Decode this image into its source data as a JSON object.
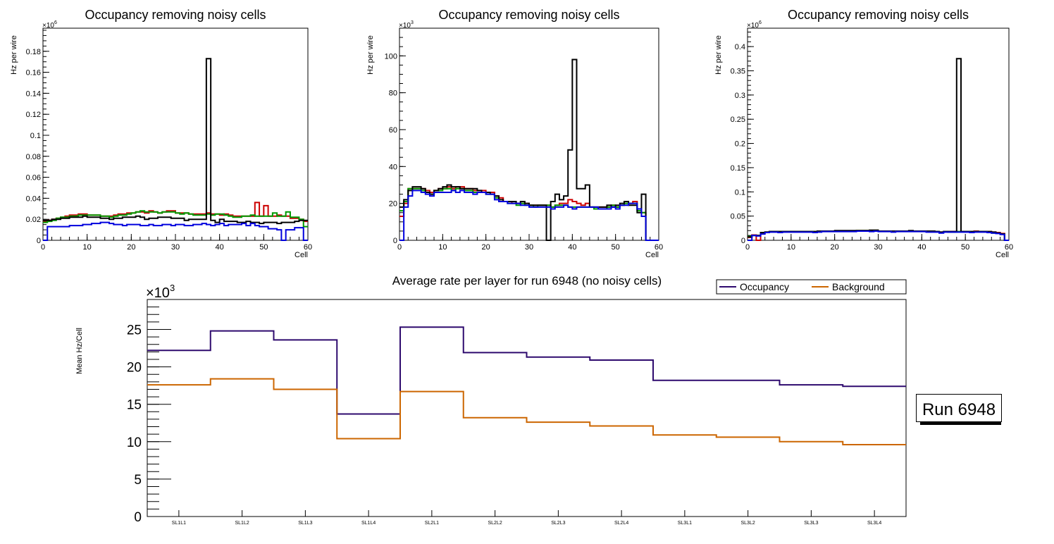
{
  "chart_data": [
    {
      "type": "line",
      "style": "step-histogram",
      "title": "Occupancy removing noisy cells",
      "xlabel": "Cell",
      "ylabel": "Hz per wire",
      "y_multiplier": "×10",
      "y_multiplier_exp": "6",
      "xlim": [
        0,
        60
      ],
      "ylim": [
        0,
        0.202
      ],
      "xticks": [
        0,
        10,
        20,
        30,
        40,
        50,
        60
      ],
      "yticks": [
        0,
        0.02,
        0.04,
        0.06,
        0.08,
        0.1,
        0.12,
        0.14,
        0.16,
        0.18
      ],
      "ytick_labels": [
        "0",
        "0.02",
        "0.04",
        "0.06",
        "0.08",
        "0.1",
        "0.12",
        "0.14",
        "0.16",
        "0.18"
      ],
      "y_minor": 0.005,
      "x_minor": 2,
      "series": [
        {
          "name": "red",
          "color": "#cc0000",
          "values": [
            0.018,
            0.019,
            0.02,
            0.021,
            0.022,
            0.023,
            0.024,
            0.024,
            0.025,
            0.025,
            0.024,
            0.024,
            0.024,
            0.023,
            0.023,
            0.023,
            0.024,
            0.025,
            0.025,
            0.026,
            0.026,
            0.027,
            0.027,
            0.026,
            0.028,
            0.027,
            0.026,
            0.027,
            0.028,
            0.028,
            0.026,
            0.026,
            0.026,
            0.025,
            0.025,
            0.025,
            0.025,
            0.026,
            0.025,
            0.025,
            0.024,
            0.025,
            0.024,
            0.023,
            0.023,
            0.023,
            0.023,
            0.023,
            0.036,
            0.023,
            0.033,
            0.023,
            0.023,
            0.024,
            0.023,
            0.023,
            0.021,
            0.021,
            0.02,
            0.018
          ]
        },
        {
          "name": "green",
          "color": "#009900",
          "values": [
            0.017,
            0.018,
            0.019,
            0.021,
            0.022,
            0.022,
            0.023,
            0.023,
            0.024,
            0.024,
            0.024,
            0.024,
            0.024,
            0.023,
            0.023,
            0.022,
            0.023,
            0.024,
            0.024,
            0.025,
            0.026,
            0.027,
            0.028,
            0.027,
            0.027,
            0.027,
            0.026,
            0.027,
            0.027,
            0.027,
            0.026,
            0.025,
            0.026,
            0.025,
            0.024,
            0.024,
            0.024,
            0.025,
            0.024,
            0.025,
            0.025,
            0.024,
            0.023,
            0.022,
            0.022,
            0.023,
            0.023,
            0.024,
            0.023,
            0.023,
            0.023,
            0.023,
            0.026,
            0.023,
            0.023,
            0.027,
            0.022,
            0.022,
            0.02,
            0.013
          ]
        },
        {
          "name": "black",
          "color": "#000000",
          "values": [
            0.019,
            0.019,
            0.02,
            0.02,
            0.021,
            0.021,
            0.022,
            0.022,
            0.022,
            0.023,
            0.022,
            0.022,
            0.022,
            0.021,
            0.021,
            0.02,
            0.021,
            0.021,
            0.022,
            0.022,
            0.022,
            0.023,
            0.022,
            0.02,
            0.021,
            0.021,
            0.022,
            0.022,
            0.022,
            0.021,
            0.021,
            0.021,
            0.019,
            0.02,
            0.02,
            0.02,
            0.02,
            0.173,
            0.019,
            0.017,
            0.02,
            0.018,
            0.018,
            0.018,
            0.017,
            0.017,
            0.018,
            0.017,
            0.017,
            0.016,
            0.017,
            0.017,
            0.017,
            0.016,
            0.017,
            0.017,
            0.017,
            0.018,
            0.019,
            0.019
          ]
        },
        {
          "name": "blue",
          "color": "#0000dd",
          "values": [
            0,
            0.013,
            0.013,
            0.013,
            0.013,
            0.013,
            0.014,
            0.014,
            0.014,
            0.015,
            0.015,
            0.016,
            0.016,
            0.017,
            0.017,
            0.016,
            0.015,
            0.015,
            0.014,
            0.015,
            0.015,
            0.015,
            0.014,
            0.014,
            0.015,
            0.014,
            0.014,
            0.015,
            0.015,
            0.014,
            0.015,
            0.015,
            0.014,
            0.014,
            0.015,
            0.015,
            0.016,
            0.015,
            0.014,
            0.015,
            0.016,
            0.014,
            0.015,
            0.015,
            0.015,
            0.016,
            0.014,
            0.016,
            0.014,
            0.013,
            0.013,
            0.011,
            0.011,
            0.01,
            0,
            0.01,
            0.01,
            0.012,
            0.012,
            0
          ]
        }
      ]
    },
    {
      "type": "line",
      "style": "step-histogram",
      "title": "Occupancy removing noisy cells",
      "xlabel": "Cell",
      "ylabel": "Hz per wire",
      "y_multiplier": "×10",
      "y_multiplier_exp": "3",
      "xlim": [
        0,
        60
      ],
      "ylim": [
        0,
        115
      ],
      "xticks": [
        0,
        10,
        20,
        30,
        40,
        50,
        60
      ],
      "yticks": [
        0,
        20,
        40,
        60,
        80,
        100
      ],
      "ytick_labels": [
        "0",
        "20",
        "40",
        "60",
        "80",
        "100"
      ],
      "y_minor": 5,
      "x_minor": 2,
      "series": [
        {
          "name": "red",
          "color": "#cc0000",
          "values": [
            13,
            20,
            28,
            28,
            28,
            28,
            27,
            26,
            27,
            28,
            28,
            29,
            28,
            29,
            29,
            28,
            28,
            27,
            27,
            27,
            26,
            26,
            24,
            23,
            21,
            21,
            20,
            20,
            20,
            20,
            19,
            19,
            19,
            19,
            19,
            18,
            19,
            20,
            20,
            22,
            21,
            20,
            19,
            20,
            18,
            18,
            18,
            18,
            18,
            19,
            18,
            19,
            20,
            20,
            21,
            17,
            15,
            0,
            0,
            0
          ]
        },
        {
          "name": "green",
          "color": "#009900",
          "values": [
            16,
            21,
            28,
            28,
            28,
            27,
            26,
            25,
            27,
            27,
            28,
            28,
            27,
            28,
            28,
            27,
            27,
            26,
            26,
            26,
            25,
            25,
            23,
            21,
            21,
            20,
            20,
            19,
            20,
            19,
            19,
            18,
            19,
            19,
            19,
            18,
            19,
            19,
            19,
            18,
            18,
            18,
            18,
            18,
            18,
            17,
            17,
            17,
            18,
            19,
            18,
            19,
            20,
            20,
            20,
            16,
            15,
            0,
            0,
            0
          ]
        },
        {
          "name": "black",
          "color": "#000000",
          "values": [
            18,
            22,
            27,
            29,
            29,
            28,
            26,
            25,
            27,
            28,
            29,
            30,
            29,
            29,
            28,
            28,
            28,
            28,
            27,
            26,
            26,
            25,
            24,
            22,
            21,
            21,
            21,
            20,
            21,
            20,
            19,
            19,
            19,
            19,
            0,
            21,
            25,
            22,
            24,
            49,
            98,
            28,
            28,
            30,
            18,
            18,
            18,
            18,
            19,
            18,
            19,
            20,
            21,
            19,
            19,
            15,
            25,
            0,
            0,
            0
          ]
        },
        {
          "name": "blue",
          "color": "#0000dd",
          "values": [
            0,
            18,
            24,
            27,
            27,
            26,
            25,
            24,
            26,
            26,
            26,
            26,
            27,
            26,
            27,
            26,
            26,
            25,
            26,
            26,
            25,
            25,
            22,
            21,
            21,
            20,
            20,
            20,
            19,
            19,
            18,
            18,
            18,
            18,
            18,
            17,
            18,
            18,
            19,
            18,
            17,
            18,
            18,
            18,
            18,
            18,
            17,
            17,
            17,
            18,
            17,
            19,
            19,
            20,
            20,
            17,
            13,
            0,
            0,
            0
          ]
        }
      ]
    },
    {
      "type": "line",
      "style": "step-histogram",
      "title": "Occupancy removing noisy cells",
      "xlabel": "Cell",
      "ylabel": "Hz per wire",
      "y_multiplier": "×10",
      "y_multiplier_exp": "6",
      "xlim": [
        0,
        60
      ],
      "ylim": [
        0,
        0.438
      ],
      "xticks": [
        0,
        10,
        20,
        30,
        40,
        50,
        60
      ],
      "yticks": [
        0,
        0.05,
        0.1,
        0.15,
        0.2,
        0.25,
        0.3,
        0.35,
        0.4
      ],
      "ytick_labels": [
        "0",
        "0.05",
        "0.1",
        "0.15",
        "0.2",
        "0.25",
        "0.3",
        "0.35",
        "0.4"
      ],
      "y_minor": 0.01,
      "x_minor": 2,
      "series": [
        {
          "name": "red",
          "color": "#cc0000",
          "values": [
            0.006,
            0.011,
            0,
            0.015,
            0.017,
            0.018,
            0.018,
            0.018,
            0.018,
            0.018,
            0.018,
            0.018,
            0.018,
            0.018,
            0.018,
            0.018,
            0.018,
            0.019,
            0.019,
            0.019,
            0.019,
            0.019,
            0.019,
            0.019,
            0.019,
            0.02,
            0.02,
            0.02,
            0.02,
            0.02,
            0.019,
            0.019,
            0.019,
            0.019,
            0.019,
            0.019,
            0.019,
            0.019,
            0.019,
            0.019,
            0.019,
            0.019,
            0.018,
            0.018,
            0.017,
            0.018,
            0.018,
            0.018,
            0.018,
            0.018,
            0.018,
            0.018,
            0.019,
            0.018,
            0.018,
            0.018,
            0.017,
            0.016,
            0.014,
            0
          ]
        },
        {
          "name": "green",
          "color": "#009900",
          "values": [
            0.008,
            0.01,
            0.01,
            0.016,
            0.017,
            0.018,
            0.018,
            0.018,
            0.018,
            0.018,
            0.018,
            0.018,
            0.018,
            0.018,
            0.018,
            0.018,
            0.018,
            0.019,
            0.019,
            0.019,
            0.019,
            0.019,
            0.019,
            0.019,
            0.019,
            0.02,
            0.02,
            0.02,
            0.02,
            0.02,
            0.019,
            0.019,
            0.019,
            0.019,
            0.019,
            0.019,
            0.019,
            0.019,
            0.019,
            0.019,
            0.019,
            0.018,
            0.018,
            0.018,
            0.016,
            0.018,
            0.017,
            0.017,
            0.018,
            0.018,
            0.018,
            0.018,
            0.018,
            0.018,
            0.018,
            0.017,
            0.015,
            0.015,
            0.013,
            0
          ]
        },
        {
          "name": "black",
          "color": "#000000",
          "values": [
            0.007,
            0.01,
            0.01,
            0.016,
            0.017,
            0.018,
            0.018,
            0.018,
            0.018,
            0.018,
            0.018,
            0.018,
            0.018,
            0.018,
            0.018,
            0.018,
            0.019,
            0.019,
            0.019,
            0.019,
            0.02,
            0.02,
            0.02,
            0.02,
            0.02,
            0.02,
            0.02,
            0.02,
            0.021,
            0.021,
            0.019,
            0.019,
            0.019,
            0.019,
            0.019,
            0.019,
            0.019,
            0.02,
            0.019,
            0.019,
            0.019,
            0.019,
            0.019,
            0.018,
            0.017,
            0.018,
            0.018,
            0.018,
            0.375,
            0.018,
            0.018,
            0.018,
            0.018,
            0.018,
            0.018,
            0.018,
            0.017,
            0.015,
            0.013,
            0
          ]
        },
        {
          "name": "blue",
          "color": "#0000dd",
          "values": [
            0,
            0.01,
            0.009,
            0.013,
            0.016,
            0.017,
            0.017,
            0.016,
            0.017,
            0.017,
            0.017,
            0.017,
            0.017,
            0.017,
            0.017,
            0.016,
            0.017,
            0.018,
            0.018,
            0.018,
            0.018,
            0.018,
            0.018,
            0.018,
            0.018,
            0.019,
            0.019,
            0.019,
            0.018,
            0.019,
            0.018,
            0.018,
            0.018,
            0.017,
            0.018,
            0.018,
            0.018,
            0.018,
            0.018,
            0.018,
            0.018,
            0.017,
            0.017,
            0.017,
            0.015,
            0.017,
            0.017,
            0.017,
            0.017,
            0.017,
            0.017,
            0.016,
            0.017,
            0.017,
            0.017,
            0.016,
            0.015,
            0.014,
            0.012,
            0
          ]
        }
      ]
    },
    {
      "type": "line",
      "style": "step-histogram",
      "title": "Average rate per layer for run 6948 (no noisy cells)",
      "xlabel": "",
      "ylabel": "Mean Hz/Cell",
      "y_multiplier": "×10",
      "y_multiplier_exp": "3",
      "categories": [
        "SL1L1",
        "SL1L2",
        "SL1L3",
        "SL1L4",
        "SL2L1",
        "SL2L2",
        "SL2L3",
        "SL2L4",
        "SL3L1",
        "SL3L2",
        "SL3L3",
        "SL3L4"
      ],
      "ylim": [
        0,
        29
      ],
      "yticks": [
        0,
        5,
        10,
        15,
        20,
        25
      ],
      "ytick_labels": [
        "0",
        "5",
        "10",
        "15",
        "20",
        "25"
      ],
      "y_minor": 1,
      "legend": "top-right",
      "series": [
        {
          "name": "Occupancy",
          "color": "#2e0a6e",
          "values": [
            22.2,
            24.8,
            23.6,
            13.7,
            25.3,
            21.9,
            21.3,
            20.9,
            18.2,
            18.2,
            17.6,
            17.4
          ]
        },
        {
          "name": "Background",
          "color": "#cc6600",
          "values": [
            17.6,
            18.4,
            17.0,
            10.4,
            16.7,
            13.2,
            12.6,
            12.1,
            10.9,
            10.6,
            10.0,
            9.6
          ]
        }
      ],
      "annotation": "Run 6948"
    }
  ]
}
